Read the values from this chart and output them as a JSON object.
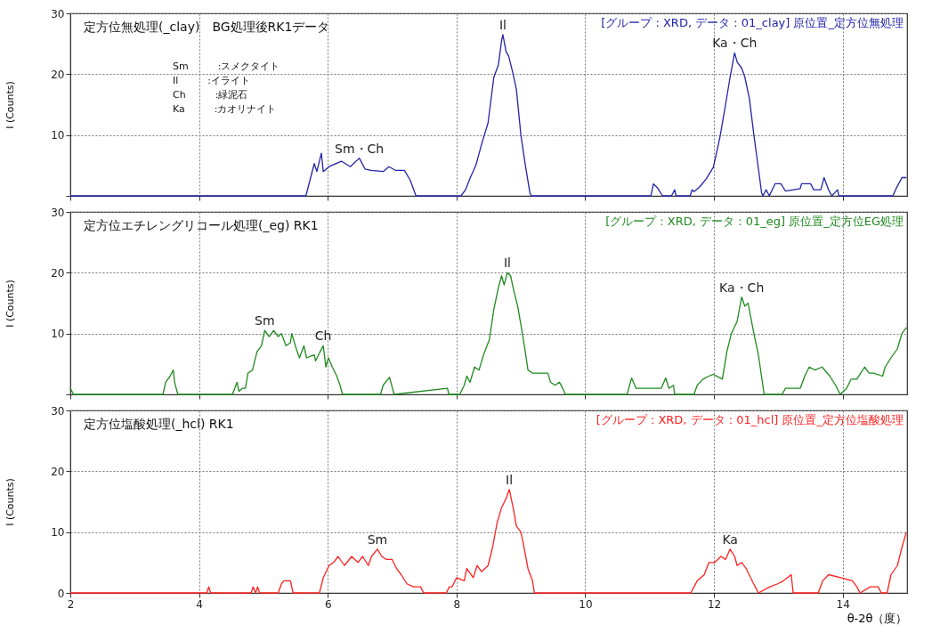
{
  "chart_data": [
    {
      "type": "line",
      "ylabel": "I (Counts)",
      "xlim": [
        2,
        15
      ],
      "xticks": [
        2,
        4,
        6,
        8,
        10,
        12,
        14
      ],
      "ylim": [
        0,
        30
      ],
      "yticks": [
        {
          "value": 0,
          "label": null
        },
        10,
        20,
        30
      ],
      "grid": true,
      "tick_labels": "y",
      "marker": "none",
      "line_style": "solid",
      "annotations": [
        "定方位無処理(_clay)　BG処理後RK1データ",
        "[グループ : XRD, データ : 01_clay] 原位置_定方位無処理",
        "Sm　　　:スメクタイト",
        "Il　　　:イライト",
        "Ch　　　:緑泥石",
        "Ka　　　:カオリナイト",
        {
          "text": "Sm・Ch",
          "x": 6.49,
          "y": 6.2
        },
        {
          "text": "Il",
          "x": 8.72,
          "y": 26.5
        },
        {
          "text": "Ka・Ch",
          "x": 12.32,
          "y": 23.5
        }
      ],
      "series": [
        {
          "color": "#2323a8",
          "x": [
            2,
            5.66,
            5.79,
            5.83,
            5.9,
            5.93,
            6.02,
            6.21,
            6.35,
            6.49,
            6.58,
            6.67,
            6.86,
            6.95,
            7.05,
            7.19,
            7.28,
            7.37,
            8.07,
            8.14,
            8.21,
            8.3,
            8.39,
            8.49,
            8.58,
            8.65,
            8.7,
            8.72,
            8.77,
            8.81,
            8.88,
            8.93,
            9.0,
            9.07,
            9.14,
            9.16,
            11.02,
            11.06,
            11.13,
            11.2,
            11.34,
            11.39,
            11.41,
            11.63,
            11.66,
            11.69,
            11.78,
            11.88,
            11.99,
            12.09,
            12.18,
            12.25,
            12.32,
            12.36,
            12.43,
            12.48,
            12.55,
            12.62,
            12.69,
            12.74,
            12.76,
            12.81,
            12.86,
            12.95,
            13.04,
            13.11,
            13.34,
            13.36,
            13.5,
            13.55,
            13.66,
            13.71,
            13.78,
            13.83,
            13.92,
            13.94,
            14.78,
            14.82,
            14.92,
            14.99
          ],
          "values": [
            0,
            0,
            5.3,
            4,
            7,
            4,
            4.8,
            5.7,
            4.8,
            6.2,
            4.4,
            4.2,
            4,
            4.8,
            4.2,
            4.2,
            2.6,
            0,
            0,
            1,
            2.9,
            5,
            8.5,
            12,
            19.5,
            21.5,
            25.5,
            26.5,
            23.7,
            23,
            20,
            17.5,
            10,
            5,
            0.5,
            0,
            0,
            2,
            1.2,
            0,
            0,
            1,
            0,
            0,
            1,
            0.7,
            1.5,
            2.8,
            4.7,
            9.5,
            15,
            19.5,
            23.5,
            22,
            21,
            19.5,
            16,
            10,
            4.5,
            0.5,
            0,
            1,
            0,
            2,
            2,
            0.8,
            1.2,
            2,
            2,
            1,
            1,
            3,
            1,
            0,
            1,
            0,
            0,
            1,
            3,
            3
          ]
        }
      ]
    },
    {
      "type": "line",
      "ylabel": "I (Counts)",
      "xlim": [
        2,
        15
      ],
      "xticks": [
        2,
        4,
        6,
        8,
        10,
        12,
        14
      ],
      "ylim": [
        0,
        30
      ],
      "yticks": [
        {
          "value": 0,
          "label": null
        },
        10,
        20,
        30
      ],
      "grid": true,
      "tick_labels": "y",
      "marker": "none",
      "line_style": "solid",
      "annotations": [
        "定方位エチレングリコール処理(_eg) RK1",
        "[グループ : XRD, データ : 01_eg] 原位置_定方位EG処理",
        {
          "text": "Sm",
          "x": 5.02,
          "y": 10.5
        },
        {
          "text": "Ch",
          "x": 5.93,
          "y": 8
        },
        {
          "text": "Il",
          "x": 8.79,
          "y": 20
        },
        {
          "text": "Ka・Ch",
          "x": 12.43,
          "y": 16
        }
      ],
      "series": [
        {
          "color": "#1f8a1f",
          "x": [
            2,
            2.05,
            3.44,
            3.48,
            3.55,
            3.6,
            3.62,
            3.67,
            4.52,
            4.59,
            4.62,
            4.67,
            4.72,
            4.76,
            4.83,
            4.9,
            4.97,
            5.02,
            5.09,
            5.16,
            5.23,
            5.28,
            5.35,
            5.42,
            5.44,
            5.51,
            5.56,
            5.63,
            5.67,
            5.79,
            5.81,
            5.88,
            5.93,
            5.97,
            6.01,
            6.07,
            6.14,
            6.19,
            6.23,
            6.82,
            6.86,
            6.96,
            7.03,
            7.86,
            7.88,
            8.05,
            8.12,
            8.16,
            8.21,
            8.28,
            8.35,
            8.42,
            8.51,
            8.58,
            8.65,
            8.7,
            8.74,
            8.79,
            8.84,
            8.88,
            8.95,
            9.04,
            9.11,
            9.18,
            9.28,
            9.42,
            9.46,
            9.53,
            9.6,
            9.65,
            9.69,
            10.65,
            10.72,
            10.79,
            10.9,
            11.18,
            11.25,
            11.3,
            11.37,
            11.39,
            11.69,
            11.74,
            11.83,
            11.92,
            11.99,
            12.13,
            12.2,
            12.27,
            12.36,
            12.43,
            12.48,
            12.53,
            12.62,
            12.69,
            12.78,
            13.06,
            13.11,
            13.34,
            13.41,
            13.48,
            13.57,
            13.68,
            13.8,
            13.89,
            13.96,
            14.06,
            14.13,
            14.22,
            14.34,
            14.41,
            14.48,
            14.62,
            14.66,
            14.75,
            14.85,
            14.92,
            14.99
          ],
          "values": [
            1,
            0,
            0,
            2,
            3,
            4,
            2,
            0,
            0,
            2,
            0.5,
            1,
            1,
            3.5,
            4,
            7,
            8,
            10.5,
            9.5,
            10.5,
            9.5,
            10,
            8,
            8.5,
            10,
            7.5,
            6,
            8,
            6,
            6.5,
            5.5,
            7,
            8,
            4.5,
            6,
            4.5,
            3,
            1.5,
            0,
            0,
            1.5,
            2.8,
            0,
            1,
            0,
            0,
            1.5,
            3,
            2,
            4.5,
            4,
            6.5,
            9,
            14,
            17.5,
            19.5,
            18,
            20,
            19.5,
            17.5,
            14.5,
            9,
            4,
            3.5,
            3.5,
            3.5,
            2,
            1.5,
            2,
            1,
            0,
            0,
            2.7,
            1,
            1,
            1,
            2.7,
            1,
            1.5,
            0,
            0,
            1.5,
            2.5,
            3,
            3.3,
            2.5,
            7,
            10,
            12,
            16,
            14.5,
            15,
            10,
            6.5,
            0,
            0,
            1,
            1,
            3,
            4.5,
            4,
            4.5,
            3,
            1.5,
            0,
            1,
            2.5,
            2.5,
            4.5,
            3.5,
            3.5,
            3,
            4.5,
            6,
            7.5,
            10,
            11
          ]
        }
      ]
    },
    {
      "type": "line",
      "xlabel": "θ-2θ（度）",
      "ylabel": "I (Counts)",
      "xlim": [
        2,
        15
      ],
      "xticks": [
        2,
        4,
        6,
        8,
        10,
        12,
        14
      ],
      "ylim": [
        0,
        30
      ],
      "yticks": [
        0,
        10,
        20,
        30
      ],
      "grid": true,
      "marker": "none",
      "line_style": "solid",
      "annotations": [
        "定方位塩酸処理(_hcl) RK1",
        "[グループ : XRD, データ : 01_hcl] 原位置_定方位塩酸処理",
        {
          "text": "Sm",
          "x": 6.77,
          "y": 7.2
        },
        {
          "text": "Il",
          "x": 8.82,
          "y": 17
        },
        {
          "text": "Ka",
          "x": 12.25,
          "y": 7.2
        }
      ],
      "series": [
        {
          "color": "#ff2020",
          "x": [
            2,
            4.12,
            4.15,
            4.18,
            4.81,
            4.84,
            4.88,
            4.91,
            4.94,
            5.23,
            5.28,
            5.32,
            5.42,
            5.46,
            5.87,
            5.93,
            6.02,
            6.09,
            6.16,
            6.26,
            6.37,
            6.47,
            6.54,
            6.63,
            6.68,
            6.77,
            6.84,
            6.91,
            7.0,
            7.07,
            7.14,
            7.23,
            7.33,
            7.44,
            7.49,
            7.84,
            7.89,
            7.93,
            8.0,
            8.12,
            8.16,
            8.26,
            8.32,
            8.39,
            8.49,
            8.56,
            8.63,
            8.7,
            8.77,
            8.82,
            8.88,
            8.93,
            9.0,
            9.04,
            9.11,
            9.18,
            9.21,
            11.64,
            11.74,
            11.85,
            11.92,
            12.01,
            12.11,
            12.18,
            12.25,
            12.32,
            12.36,
            12.43,
            12.5,
            12.57,
            12.64,
            12.69,
            12.87,
            12.99,
            13.08,
            13.2,
            13.23,
            13.62,
            13.69,
            13.78,
            13.97,
            14.15,
            14.22,
            14.27,
            14.43,
            14.55,
            14.6,
            14.69,
            14.75,
            14.85,
            14.92,
            14.99
          ],
          "values": [
            0,
            0,
            1,
            0,
            0,
            1,
            0,
            1,
            0,
            0,
            1.5,
            2,
            2,
            0,
            0,
            2.5,
            4.5,
            5,
            6,
            4.5,
            6,
            5,
            6,
            4.5,
            6,
            7.2,
            6,
            5.5,
            5.5,
            4,
            3,
            1.5,
            1,
            1,
            0,
            0,
            1,
            1,
            2.5,
            2,
            4,
            2.5,
            4.5,
            3.5,
            4.5,
            7.5,
            11.5,
            14,
            15.5,
            17,
            14,
            11,
            10,
            8,
            4,
            2,
            0,
            0,
            2,
            3,
            5,
            5,
            6,
            5.5,
            7.2,
            6,
            4.5,
            5,
            4,
            2.5,
            1,
            0,
            1,
            1.5,
            2,
            3,
            0,
            0,
            2,
            3,
            2.5,
            2,
            1,
            0,
            1,
            1,
            0,
            0,
            3,
            4.5,
            7.5,
            10
          ]
        }
      ]
    }
  ]
}
